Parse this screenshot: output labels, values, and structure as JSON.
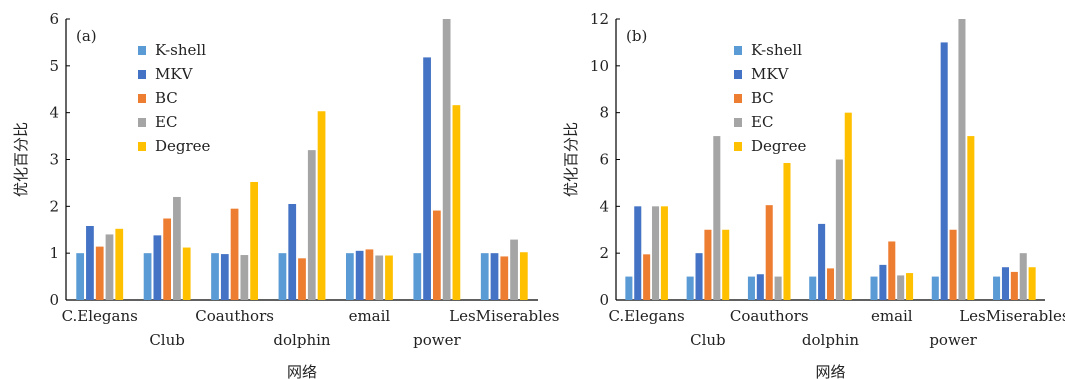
{
  "figure": {
    "xlabel": "网络",
    "ylabel": "优化百分比"
  },
  "colors": {
    "K-shell": "#5B9BD5",
    "MKV": "#4472C4",
    "BC": "#ED7D31",
    "EC": "#A5A5A5",
    "Degree": "#FFC000"
  },
  "chart_data": [
    {
      "type": "bar",
      "panel": "(a)",
      "categories": [
        "C.Elegans",
        "Club",
        "Coauthors",
        "dolphin",
        "email",
        "power",
        "LesMiserables"
      ],
      "xlabel": "网络",
      "ylabel": "优化百分比",
      "ylim": [
        0,
        6
      ],
      "yticks": [
        0,
        1,
        2,
        3,
        4,
        5,
        6
      ],
      "legend": "upper-left",
      "series": [
        {
          "name": "K-shell",
          "values": [
            1,
            1,
            1,
            1,
            1,
            1,
            1
          ]
        },
        {
          "name": "MKV",
          "values": [
            1.58,
            1.38,
            0.98,
            2.05,
            1.05,
            5.18,
            1.0
          ]
        },
        {
          "name": "BC",
          "values": [
            1.14,
            1.74,
            1.95,
            0.89,
            1.08,
            1.91,
            0.93
          ]
        },
        {
          "name": "EC",
          "values": [
            1.4,
            2.2,
            0.96,
            3.2,
            0.95,
            6.0,
            1.29
          ]
        },
        {
          "name": "Degree",
          "values": [
            1.52,
            1.12,
            2.52,
            4.03,
            0.95,
            4.16,
            1.02
          ]
        }
      ]
    },
    {
      "type": "bar",
      "panel": "(b)",
      "categories": [
        "C.Elegans",
        "Club",
        "Coauthors",
        "dolphin",
        "email",
        "power",
        "LesMiserables"
      ],
      "xlabel": "网络",
      "ylabel": "优化百分比",
      "ylim": [
        0,
        12
      ],
      "yticks": [
        0,
        2,
        4,
        6,
        8,
        10,
        12
      ],
      "legend": "upper-left",
      "series": [
        {
          "name": "K-shell",
          "values": [
            1,
            1,
            1,
            1,
            1,
            1,
            1
          ]
        },
        {
          "name": "MKV",
          "values": [
            4.0,
            2.0,
            1.1,
            3.25,
            1.5,
            11.0,
            1.4
          ]
        },
        {
          "name": "BC",
          "values": [
            1.95,
            3.0,
            4.05,
            1.35,
            2.5,
            3.0,
            1.2
          ]
        },
        {
          "name": "EC",
          "values": [
            4.0,
            7.0,
            1.0,
            6.0,
            1.05,
            12.0,
            2.0
          ]
        },
        {
          "name": "Degree",
          "values": [
            4.0,
            3.0,
            5.85,
            8.0,
            1.15,
            7.0,
            1.4
          ]
        }
      ]
    }
  ]
}
